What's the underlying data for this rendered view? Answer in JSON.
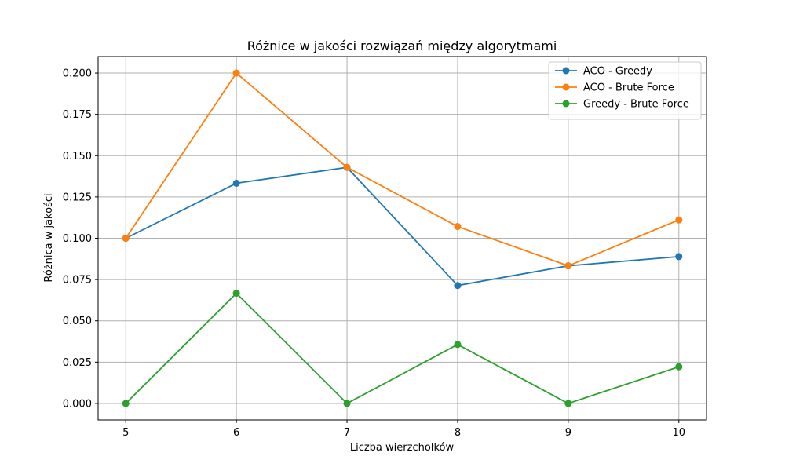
{
  "chart_data": {
    "type": "line",
    "title": "Różnice w jakości rozwiązań między algorytmami",
    "xlabel": "Liczba wierzchołków",
    "ylabel": "Różnica w jakości",
    "x": [
      5,
      6,
      7,
      8,
      9,
      10
    ],
    "xlim": [
      4.75,
      10.25
    ],
    "ylim": [
      -0.01,
      0.21
    ],
    "xticks": [
      5,
      6,
      7,
      8,
      9,
      10
    ],
    "yticks": [
      0.0,
      0.025,
      0.05,
      0.075,
      0.1,
      0.125,
      0.15,
      0.175,
      0.2
    ],
    "ytick_labels": [
      "0.000",
      "0.025",
      "0.050",
      "0.075",
      "0.100",
      "0.125",
      "0.150",
      "0.175",
      "0.200"
    ],
    "grid": true,
    "legend_position": "top-right",
    "series": [
      {
        "name": "ACO - Greedy",
        "color": "#1f77b4",
        "marker": "circle",
        "values": [
          0.1,
          0.1333,
          0.1429,
          0.0714,
          0.0833,
          0.0889
        ]
      },
      {
        "name": "ACO - Brute Force",
        "color": "#ff7f0e",
        "marker": "circle",
        "values": [
          0.1,
          0.2,
          0.1429,
          0.1071,
          0.0833,
          0.1111
        ]
      },
      {
        "name": "Greedy - Brute Force",
        "color": "#2ca02c",
        "marker": "circle",
        "values": [
          0.0,
          0.0667,
          0.0,
          0.0357,
          0.0,
          0.0222
        ]
      }
    ]
  }
}
